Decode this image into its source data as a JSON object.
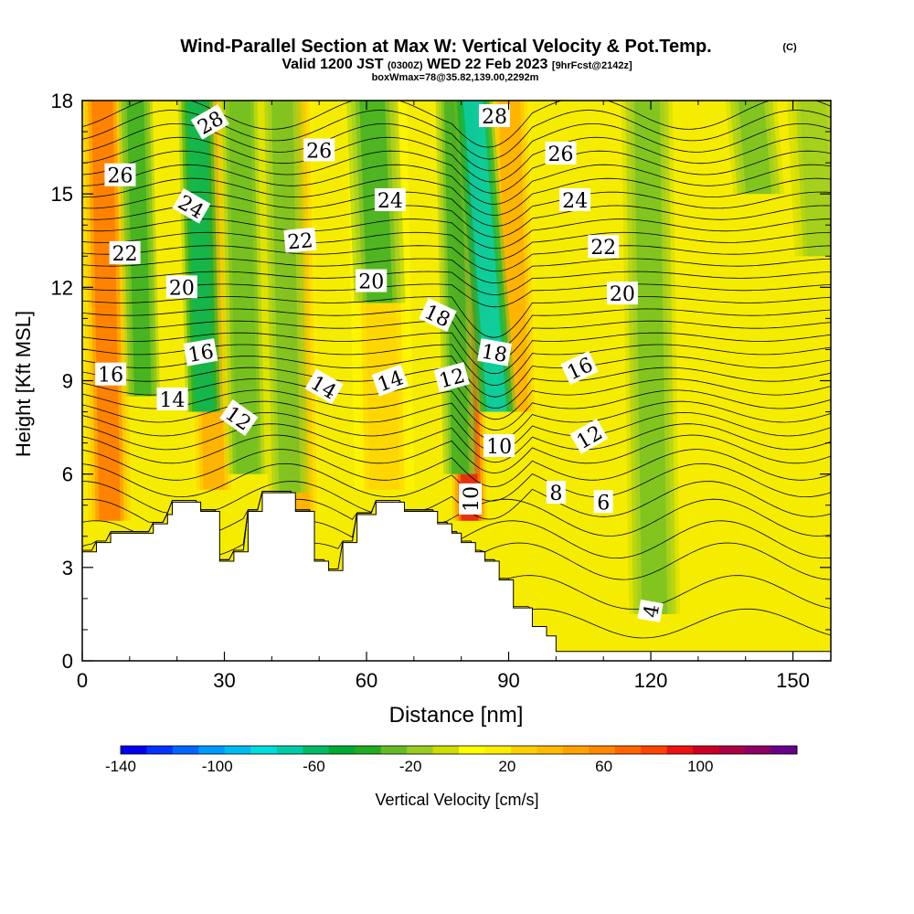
{
  "header": {
    "title": "Wind-Parallel Section at Max W: Vertical Velocity & Pot.Temp.",
    "copyright": "(C)",
    "valid_prefix": "Valid 1200 JST",
    "valid_utc": "(0300Z)",
    "valid_date": "WED 22 Feb 2023",
    "forecast": "[9hrFcst@2142z]",
    "boxinfo": "boxWmax=78@35.82,139.00,2292m"
  },
  "chart_data": {
    "type": "heatmap",
    "title": "Wind-Parallel Section at Max W: Vertical Velocity & Pot.Temp.",
    "xlabel": "Distance [nm]",
    "ylabel": "Height [Kft MSL]",
    "xlim": [
      0,
      158
    ],
    "ylim": [
      0,
      18
    ],
    "x_ticks": [
      0,
      30,
      60,
      90,
      120,
      150
    ],
    "y_ticks": [
      0,
      3,
      6,
      9,
      12,
      15,
      18
    ],
    "colorbar": {
      "label": "Vertical Velocity [cm/s]",
      "range": [
        -140,
        140
      ],
      "ticks": [
        -140,
        -100,
        -60,
        -20,
        20,
        60,
        100
      ],
      "colors": [
        "#0000ee",
        "#0033ff",
        "#0066ff",
        "#0099ff",
        "#00bbee",
        "#00dddd",
        "#00ccaa",
        "#00bb66",
        "#00aa33",
        "#22aa22",
        "#66bb22",
        "#99cc22",
        "#ccdd00",
        "#ffff00",
        "#ffee00",
        "#ffd000",
        "#ffbb00",
        "#ffa200",
        "#ff8800",
        "#ff6600",
        "#ff4400",
        "#ee1111",
        "#cc0022",
        "#aa0044",
        "#8a0066",
        "#660088"
      ]
    },
    "terrain": [
      {
        "x": 0,
        "y": 3.5
      },
      {
        "x": 3,
        "y": 3.5
      },
      {
        "x": 3,
        "y": 3.8
      },
      {
        "x": 6,
        "y": 3.8
      },
      {
        "x": 6,
        "y": 4.1
      },
      {
        "x": 15,
        "y": 4.1
      },
      {
        "x": 15,
        "y": 4.4
      },
      {
        "x": 18,
        "y": 4.4
      },
      {
        "x": 18,
        "y": 4.7
      },
      {
        "x": 19,
        "y": 4.7
      },
      {
        "x": 19,
        "y": 5.1
      },
      {
        "x": 25,
        "y": 5.1
      },
      {
        "x": 25,
        "y": 4.8
      },
      {
        "x": 29,
        "y": 4.8
      },
      {
        "x": 29,
        "y": 3.2
      },
      {
        "x": 32,
        "y": 3.2
      },
      {
        "x": 32,
        "y": 3.5
      },
      {
        "x": 35,
        "y": 3.5
      },
      {
        "x": 35,
        "y": 4.8
      },
      {
        "x": 38,
        "y": 4.8
      },
      {
        "x": 38,
        "y": 5.4
      },
      {
        "x": 45,
        "y": 5.4
      },
      {
        "x": 45,
        "y": 4.8
      },
      {
        "x": 49,
        "y": 4.8
      },
      {
        "x": 49,
        "y": 3.2
      },
      {
        "x": 52,
        "y": 3.2
      },
      {
        "x": 52,
        "y": 2.9
      },
      {
        "x": 55,
        "y": 2.9
      },
      {
        "x": 55,
        "y": 3.8
      },
      {
        "x": 58,
        "y": 3.8
      },
      {
        "x": 58,
        "y": 4.7
      },
      {
        "x": 62,
        "y": 4.7
      },
      {
        "x": 62,
        "y": 5.1
      },
      {
        "x": 68,
        "y": 5.1
      },
      {
        "x": 68,
        "y": 4.8
      },
      {
        "x": 75,
        "y": 4.8
      },
      {
        "x": 75,
        "y": 4.4
      },
      {
        "x": 78,
        "y": 4.4
      },
      {
        "x": 78,
        "y": 4.1
      },
      {
        "x": 80,
        "y": 4.1
      },
      {
        "x": 80,
        "y": 3.8
      },
      {
        "x": 83,
        "y": 3.8
      },
      {
        "x": 83,
        "y": 3.5
      },
      {
        "x": 85,
        "y": 3.5
      },
      {
        "x": 85,
        "y": 3.2
      },
      {
        "x": 88,
        "y": 3.2
      },
      {
        "x": 88,
        "y": 2.6
      },
      {
        "x": 91,
        "y": 2.6
      },
      {
        "x": 91,
        "y": 1.7
      },
      {
        "x": 95,
        "y": 1.7
      },
      {
        "x": 95,
        "y": 1.1
      },
      {
        "x": 98,
        "y": 1.1
      },
      {
        "x": 98,
        "y": 0.8
      },
      {
        "x": 100,
        "y": 0.8
      },
      {
        "x": 100,
        "y": 0.3
      },
      {
        "x": 158,
        "y": 0.3
      }
    ],
    "updrafts": [
      {
        "x": 5,
        "w": 80,
        "x_width": 2.5,
        "y_bottom": 4.5
      },
      {
        "x": 27,
        "w": 55,
        "x_width": 2.5,
        "y_bottom": 5.5
      },
      {
        "x": 45,
        "w": 60,
        "x_width": 2.5,
        "y_bottom": 4.5
      },
      {
        "x": 63,
        "w": 35,
        "x_width": 3.5,
        "y_bottom": 5.5
      },
      {
        "x": 81,
        "w": 120,
        "x_width": 2.0,
        "y_bottom": 4.5
      },
      {
        "x": 91,
        "w": 55,
        "x_width": 2.5,
        "y_bottom": 8.0
      }
    ],
    "downdrafts": [
      {
        "x": 12,
        "w": -45,
        "x_width": 2.0,
        "y_bottom": 8.5
      },
      {
        "x": 25,
        "w": -70,
        "x_width": 2.2,
        "y_bottom": 8.0
      },
      {
        "x": 34,
        "w": -35,
        "x_width": 2.5,
        "y_bottom": 6.0
      },
      {
        "x": 43,
        "w": -30,
        "x_width": 2.5,
        "y_bottom": 5.0
      },
      {
        "x": 62,
        "w": -40,
        "x_width": 3.0,
        "y_bottom": 11.5
      },
      {
        "x": 79,
        "w": -40,
        "x_width": 2.0,
        "y_bottom": 6.0
      },
      {
        "x": 85,
        "w": -90,
        "x_width": 2.3,
        "y_bottom": 8.0
      },
      {
        "x": 142,
        "w": -25,
        "x_width": 3.0,
        "y_bottom": 15.0
      },
      {
        "x": 120,
        "w": -25,
        "x_width": 3.0,
        "y_bottom": 1.5
      },
      {
        "x": 155,
        "w": -20,
        "x_width": 3.0,
        "y_bottom": 13.0
      }
    ],
    "isentrope_levels": [
      0,
      1.2,
      2.2,
      3.2,
      3.9,
      4.6,
      5.2,
      5.8,
      6.3,
      6.8,
      7.2,
      7.6,
      8.0,
      8.4,
      8.8,
      9.2,
      9.6,
      10.0,
      10.4,
      10.8,
      11.2,
      11.6,
      12.0,
      12.4,
      12.8,
      13.2,
      13.6,
      14.0,
      14.4,
      14.8,
      15.2,
      15.6,
      16.0,
      16.4,
      16.8,
      17.2,
      17.6
    ],
    "isentrope_labels": [
      {
        "text": "28",
        "x": 27,
        "y": 17.3,
        "angle": -30
      },
      {
        "text": "28",
        "x": 87,
        "y": 17.5,
        "angle": 0
      },
      {
        "text": "26",
        "x": 8,
        "y": 15.6,
        "angle": 0
      },
      {
        "text": "26",
        "x": 50,
        "y": 16.4,
        "angle": 0
      },
      {
        "text": "26",
        "x": 101,
        "y": 16.3,
        "angle": 0
      },
      {
        "text": "24",
        "x": 23,
        "y": 14.6,
        "angle": 30
      },
      {
        "text": "24",
        "x": 65,
        "y": 14.8,
        "angle": 0
      },
      {
        "text": "24",
        "x": 104,
        "y": 14.8,
        "angle": 0
      },
      {
        "text": "22",
        "x": 9,
        "y": 13.1,
        "angle": 0
      },
      {
        "text": "22",
        "x": 46,
        "y": 13.5,
        "angle": -5
      },
      {
        "text": "22",
        "x": 110,
        "y": 13.3,
        "angle": 0
      },
      {
        "text": "20",
        "x": 21,
        "y": 12.0,
        "angle": 0
      },
      {
        "text": "20",
        "x": 61,
        "y": 12.2,
        "angle": 0
      },
      {
        "text": "20",
        "x": 114,
        "y": 11.8,
        "angle": 0
      },
      {
        "text": "18",
        "x": 75,
        "y": 11.1,
        "angle": 25
      },
      {
        "text": "18",
        "x": 87,
        "y": 9.9,
        "angle": 10
      },
      {
        "text": "16",
        "x": 6,
        "y": 9.2,
        "angle": 0
      },
      {
        "text": "16",
        "x": 25,
        "y": 9.9,
        "angle": -10
      },
      {
        "text": "16",
        "x": 105,
        "y": 9.4,
        "angle": -25
      },
      {
        "text": "14",
        "x": 19,
        "y": 8.4,
        "angle": 0
      },
      {
        "text": "14",
        "x": 51,
        "y": 8.8,
        "angle": 30
      },
      {
        "text": "14",
        "x": 65,
        "y": 9.0,
        "angle": -20
      },
      {
        "text": "12",
        "x": 33,
        "y": 7.8,
        "angle": 35
      },
      {
        "text": "12",
        "x": 78,
        "y": 9.1,
        "angle": -15
      },
      {
        "text": "12",
        "x": 107,
        "y": 7.2,
        "angle": -30
      },
      {
        "text": "10",
        "x": 88,
        "y": 6.9,
        "angle": 0
      },
      {
        "text": "10",
        "x": 82,
        "y": 5.2,
        "angle": -90
      },
      {
        "text": "8",
        "x": 100,
        "y": 5.4,
        "angle": 0
      },
      {
        "text": "6",
        "x": 110,
        "y": 5.1,
        "angle": 0
      },
      {
        "text": "4",
        "x": 120,
        "y": 1.6,
        "angle": -80
      }
    ]
  }
}
